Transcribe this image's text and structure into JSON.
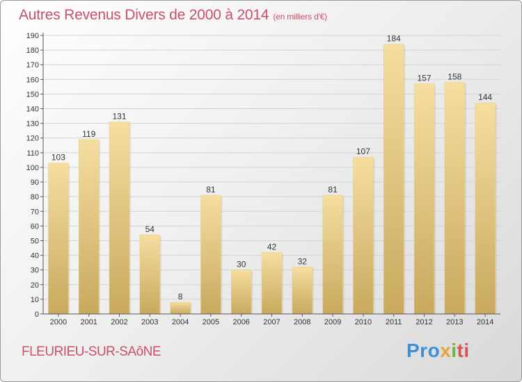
{
  "title": "Autres Revenus Divers de 2000 à 2014",
  "unit": "(en milliers d'€)",
  "commune": "FLEURIEU-SUR-SAôNE",
  "logo": {
    "p1": "Pro",
    "p2": "x",
    "p3": "i",
    "p4": "ti"
  },
  "colors": {
    "title": "#c8506b",
    "bar_top": "#f6dea0",
    "bar_bottom": "#c8a95e"
  },
  "chart_data": {
    "type": "bar",
    "title": "Autres Revenus Divers de 2000 à 2014",
    "categories": [
      "2000",
      "2001",
      "2002",
      "2003",
      "2004",
      "2005",
      "2006",
      "2007",
      "2008",
      "2009",
      "2010",
      "2011",
      "2012",
      "2013",
      "2014"
    ],
    "values": [
      103,
      119,
      131,
      54,
      8,
      81,
      30,
      42,
      32,
      81,
      107,
      184,
      157,
      158,
      144
    ],
    "ylim": [
      0,
      190
    ],
    "yticks": [
      0,
      10,
      20,
      30,
      40,
      50,
      60,
      70,
      80,
      90,
      100,
      110,
      120,
      130,
      140,
      150,
      160,
      170,
      180,
      190
    ],
    "grid": true,
    "legend": "none"
  }
}
